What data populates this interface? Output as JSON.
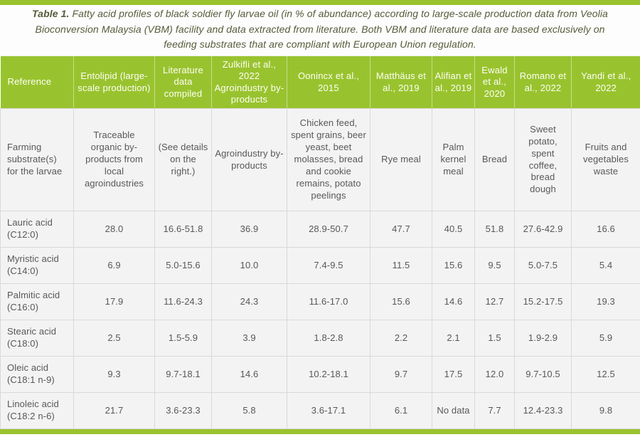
{
  "colors": {
    "accent_green": "#99c32e",
    "header_text": "#fefef8",
    "body_text": "#58585a",
    "caption_text": "#565b39",
    "cell_background": "#f3f3f4",
    "cell_border": "#d9d9d9"
  },
  "caption": {
    "prefix": "Table 1.",
    "text": " Fatty acid profiles of black soldier fly larvae oil (in % of abundance) according to large-scale production data from Veolia Bioconversion Malaysia (VBM) facility and data extracted from literature. Both VBM and literature data are based exclusively on feeding substrates that are compliant with European Union regulation."
  },
  "table": {
    "columns": [
      "Reference",
      "Entolipid (large-scale production)",
      "Literature data compiled",
      "Zulkifli et al., 2022 Agroindustry by-products",
      "Oonincx et al., 2015",
      "Matthäus et al., 2019",
      "Alifian et al., 2019",
      "Ewald et al., 2020",
      "Romano et al., 2022",
      "Yandi et al., 2022"
    ],
    "substrate_row": {
      "label": "Farming substrate(s) for the larvae",
      "values": [
        "Traceable organic by-products from local agroindustries",
        "(See details on the right.)",
        "Agroindustry by-products",
        "Chicken feed, spent grains, beer yeast, beet molasses, bread and cookie remains, potato peelings",
        "Rye meal",
        "Palm kernel meal",
        "Bread",
        "Sweet potato, spent coffee, bread dough",
        "Fruits and vegetables waste"
      ]
    },
    "rows": [
      {
        "label": "Lauric acid (C12:0)",
        "values": [
          "28.0",
          "16.6-51.8",
          "36.9",
          "28.9-50.7",
          "47.7",
          "40.5",
          "51.8",
          "27.6-42.9",
          "16.6"
        ]
      },
      {
        "label": "Myristic acid (C14:0)",
        "values": [
          "6.9",
          "5.0-15.6",
          "10.0",
          "7.4-9.5",
          "11.5",
          "15.6",
          "9.5",
          "5.0-7.5",
          "5.4"
        ]
      },
      {
        "label": "Palmitic acid (C16:0)",
        "values": [
          "17.9",
          "11.6-24.3",
          "24.3",
          "11.6-17.0",
          "15.6",
          "14.6",
          "12.7",
          "15.2-17.5",
          "19.3"
        ]
      },
      {
        "label": "Stearic acid (C18:0)",
        "values": [
          "2.5",
          "1.5-5.9",
          "3.9",
          "1.8-2.8",
          "2.2",
          "2.1",
          "1.5",
          "1.9-2.9",
          "5.9"
        ]
      },
      {
        "label": "Oleic acid (C18:1 n-9)",
        "values": [
          "9.3",
          "9.7-18.1",
          "14.6",
          "10.2-18.1",
          "9.7",
          "17.5",
          "12.0",
          "9.7-10.5",
          "12.5"
        ]
      },
      {
        "label": "Linoleic acid (C18:2 n-6)",
        "values": [
          "21.7",
          "3.6-23.3",
          "5.8",
          "3.6-17.1",
          "6.1",
          "No data",
          "7.7",
          "12.4-23.3",
          "9.8"
        ]
      }
    ]
  }
}
